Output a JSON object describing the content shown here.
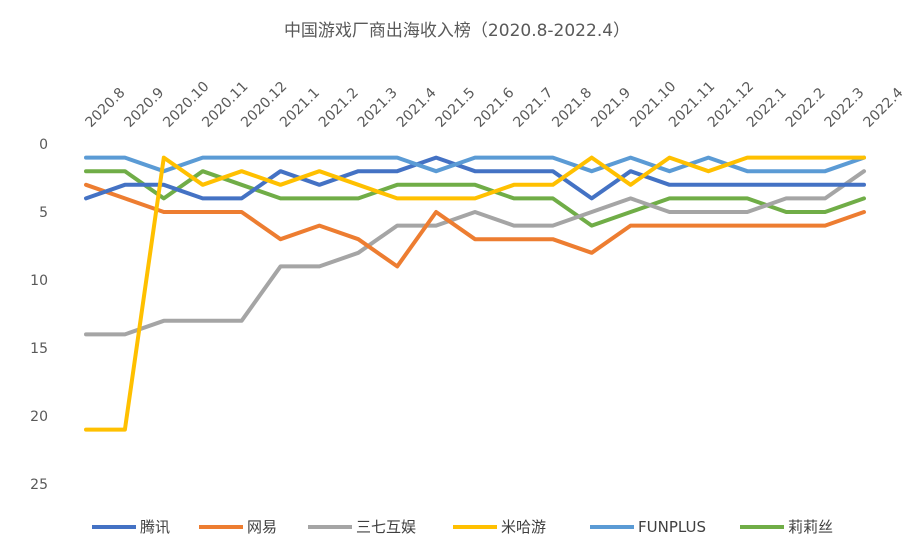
{
  "chart_data": {
    "type": "line",
    "title": "中国游戏厂商出海收入榜（2020.8-2022.4）",
    "categories": [
      "2020.8",
      "2020.9",
      "2020.10",
      "2020.11",
      "2020.12",
      "2021.1",
      "2021.2",
      "2021.3",
      "2021.4",
      "2021.5",
      "2021.6",
      "2021.7",
      "2021.8",
      "2021.9",
      "2021.10",
      "2021.11",
      "2021.12",
      "2022.1",
      "2022.2",
      "2022.3",
      "2022.4"
    ],
    "y_ticks": [
      "0",
      "5",
      "10",
      "15",
      "20",
      "25"
    ],
    "ylim": [
      0,
      27
    ],
    "y_reversed": true,
    "grid": false,
    "legend_position": "bottom",
    "series": [
      {
        "name": "腾讯",
        "color": "#4472C4",
        "values": [
          4,
          3,
          3,
          4,
          4,
          2,
          3,
          2,
          2,
          1,
          2,
          2,
          2,
          4,
          2,
          3,
          3,
          3,
          3,
          3,
          3
        ]
      },
      {
        "name": "网易",
        "color": "#ED7D31",
        "values": [
          3,
          4,
          5,
          5,
          5,
          7,
          6,
          7,
          9,
          5,
          7,
          7,
          7,
          8,
          6,
          6,
          6,
          6,
          6,
          6,
          5
        ]
      },
      {
        "name": "三七互娱",
        "color": "#A5A5A5",
        "values": [
          14,
          14,
          13,
          13,
          13,
          9,
          9,
          8,
          6,
          6,
          5,
          6,
          6,
          5,
          4,
          5,
          5,
          5,
          4,
          4,
          2
        ]
      },
      {
        "name": "米哈游",
        "color": "#FFC000",
        "values": [
          21,
          21,
          1,
          3,
          2,
          3,
          2,
          3,
          4,
          4,
          4,
          3,
          3,
          1,
          3,
          1,
          2,
          1,
          1,
          1,
          1
        ]
      },
      {
        "name": "FUNPLUS",
        "color": "#5B9BD5",
        "values": [
          1,
          1,
          2,
          1,
          1,
          1,
          1,
          1,
          1,
          2,
          1,
          1,
          1,
          2,
          1,
          2,
          1,
          2,
          2,
          2,
          1
        ]
      },
      {
        "name": "莉莉丝",
        "color": "#70AD47",
        "values": [
          2,
          2,
          4,
          2,
          3,
          4,
          4,
          4,
          3,
          3,
          3,
          4,
          4,
          6,
          5,
          4,
          4,
          4,
          5,
          5,
          4
        ]
      }
    ]
  }
}
